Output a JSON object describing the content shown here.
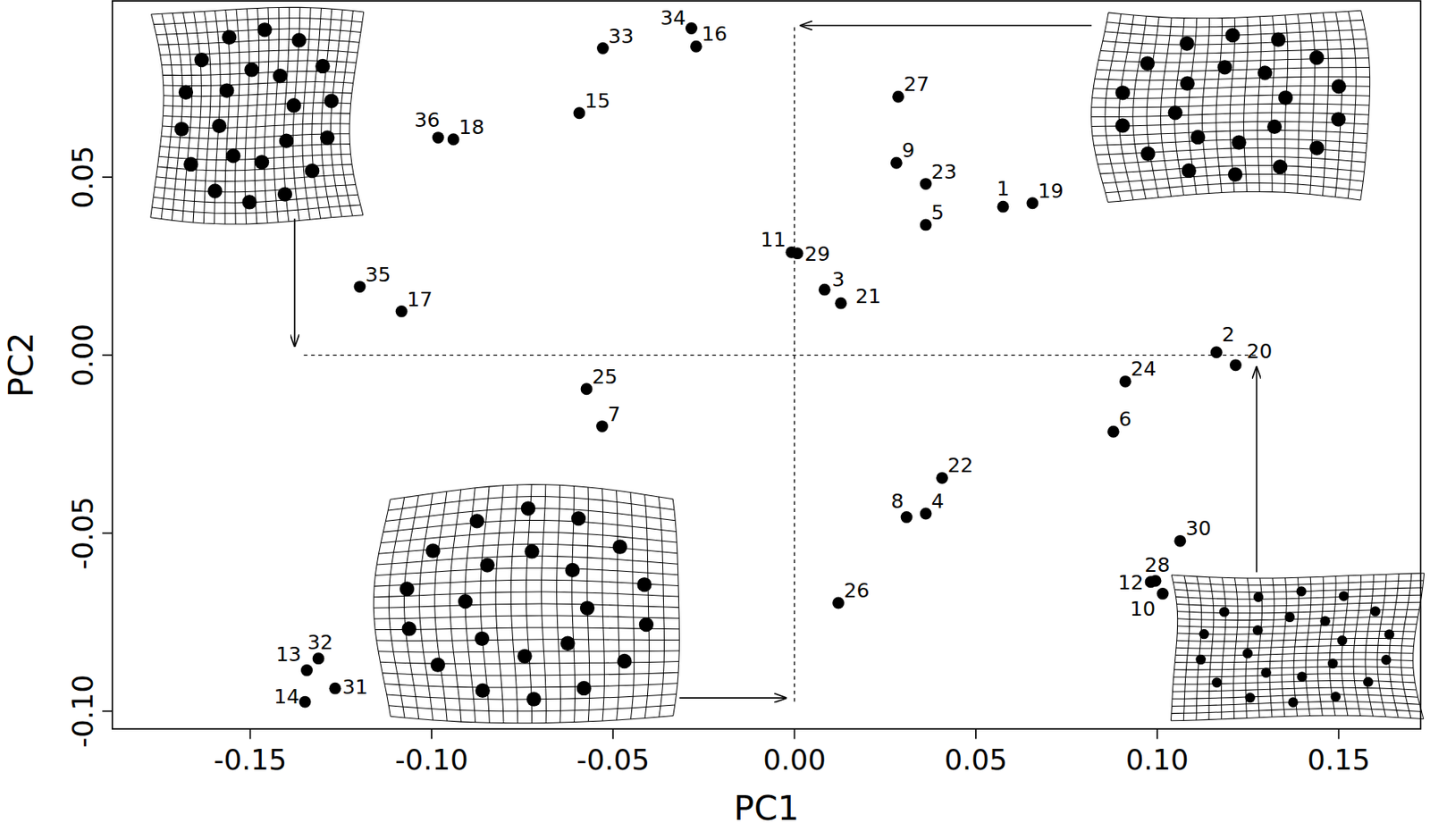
{
  "chart_data": {
    "type": "scatter",
    "x_label": "PC1",
    "y_label": "PC2",
    "color": "#000000",
    "marker": "circle",
    "labels": [
      "1",
      "2",
      "3",
      "4",
      "5",
      "6",
      "7",
      "8",
      "9",
      "10",
      "11",
      "12",
      "13",
      "14",
      "15",
      "16",
      "17",
      "18",
      "19",
      "20",
      "21",
      "22",
      "23",
      "24",
      "25",
      "26",
      "27",
      "28",
      "29",
      "30",
      "31",
      "32",
      "33",
      "34",
      "35",
      "36"
    ],
    "x": [
      0.0575,
      0.1163,
      0.0083,
      0.0362,
      0.0362,
      0.0879,
      -0.053,
      0.0309,
      0.0281,
      0.1015,
      -0.0008,
      0.0982,
      -0.1344,
      -0.1349,
      -0.0593,
      -0.0271,
      -0.1083,
      -0.094,
      0.0656,
      0.1216,
      0.0128,
      0.0407,
      0.0362,
      0.0912,
      -0.0573,
      0.0121,
      0.0286,
      0.0995,
      0.0008,
      0.1063,
      -0.1266,
      -0.1312,
      -0.0528,
      -0.0284,
      -0.1198,
      -0.0982
    ],
    "y": [
      0.0417,
      0.0008,
      0.0184,
      -0.0445,
      0.0366,
      -0.0215,
      -0.02,
      -0.0455,
      0.054,
      -0.067,
      0.0289,
      -0.0637,
      -0.0885,
      -0.0974,
      0.068,
      0.0867,
      0.0123,
      0.0606,
      0.0427,
      -0.0028,
      0.0146,
      -0.0345,
      0.0481,
      -0.0074,
      -0.0095,
      -0.0696,
      0.0726,
      -0.0634,
      0.0286,
      -0.0522,
      -0.0936,
      -0.0852,
      0.0862,
      0.0918,
      0.0192,
      0.0611
    ],
    "xlim": [
      -0.188,
      0.1726
    ],
    "ylim": [
      -0.105,
      0.0995
    ],
    "xticks": [
      {
        "value": -0.15,
        "label": "-0.15"
      },
      {
        "value": -0.1,
        "label": "-0.10"
      },
      {
        "value": -0.05,
        "label": "-0.05"
      },
      {
        "value": 0,
        "label": "0.00"
      },
      {
        "value": 0.05,
        "label": "0.05"
      },
      {
        "value": 0.1,
        "label": "0.10"
      },
      {
        "value": 0.15,
        "label": "0.15"
      }
    ],
    "yticks": [
      {
        "value": -0.1,
        "label": "-0.10"
      },
      {
        "value": -0.05,
        "label": "-0.05"
      },
      {
        "value": 0,
        "label": "0.00"
      },
      {
        "value": 0.05,
        "label": "0.05"
      }
    ],
    "ref_lines": [
      {
        "axis": "x",
        "value": 0
      },
      {
        "axis": "y",
        "value": 0
      }
    ]
  }
}
